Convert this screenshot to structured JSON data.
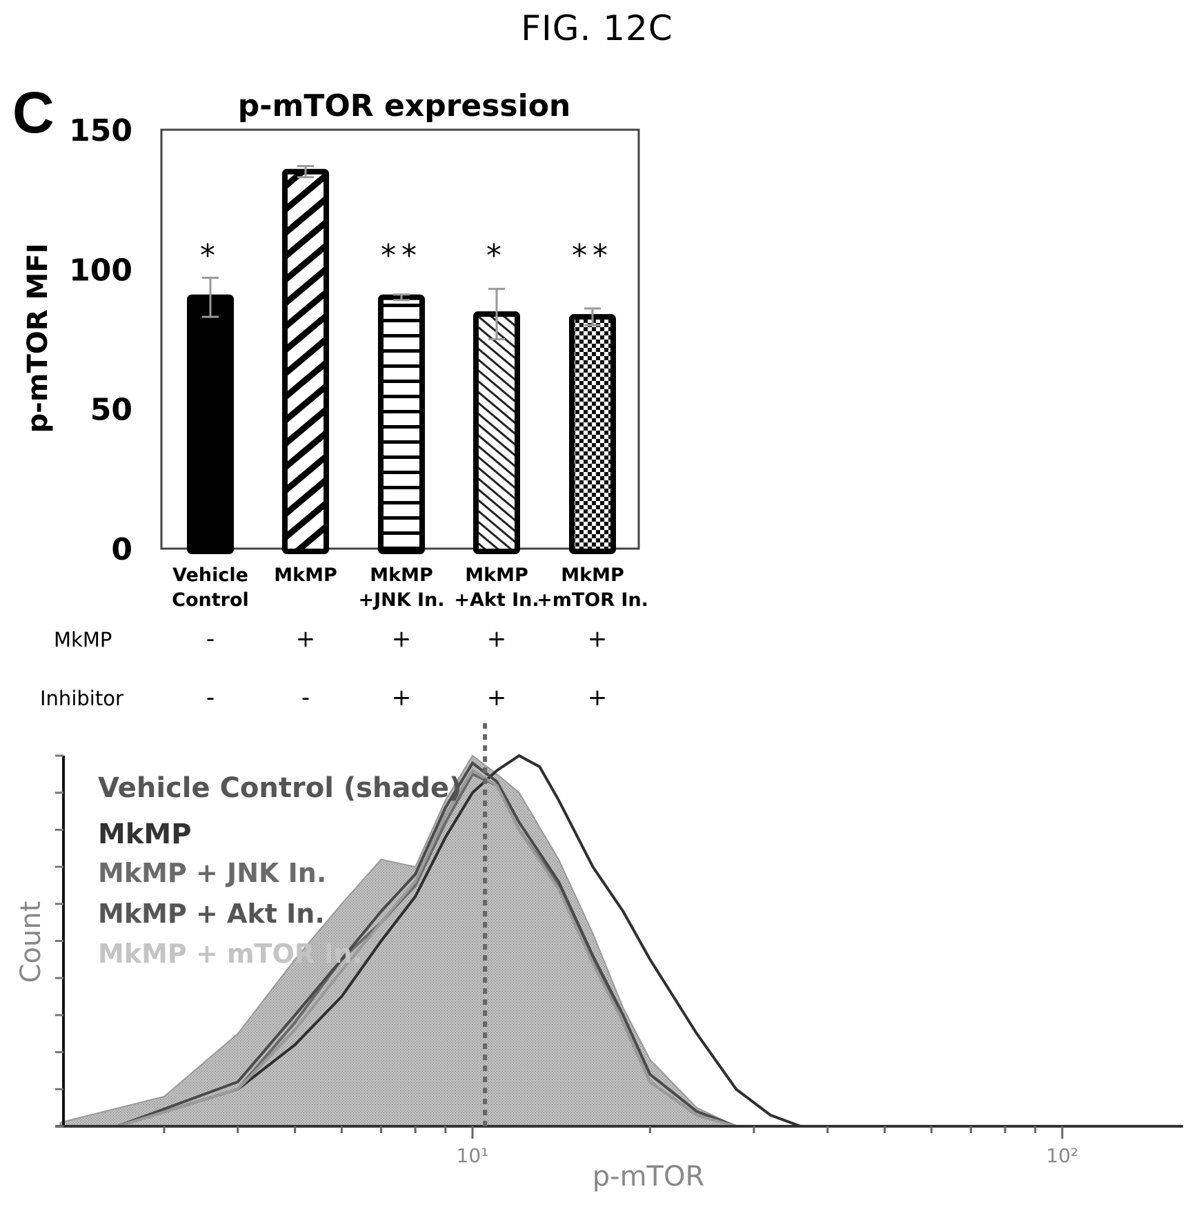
{
  "figure": {
    "title": "FIG. 12C",
    "panel_letter": "C"
  },
  "chart_data": [
    {
      "type": "bar",
      "title": "p-mTOR expression",
      "xlabel": "",
      "ylabel": "p-mTOR MFI",
      "ylim": [
        0,
        150
      ],
      "yticks": [
        0,
        50,
        100,
        150
      ],
      "ytick_labels": [
        "0",
        "50",
        "100",
        "150"
      ],
      "grid": false,
      "categories": [
        "Vehicle\nControl",
        "MkMP",
        "MkMP\n+JNK In.",
        "MkMP\n+Akt In.",
        "MkMP\n+mTOR In."
      ],
      "category_lines": [
        [
          "Vehicle",
          "Control"
        ],
        [
          "MkMP",
          ""
        ],
        [
          "MkMP",
          "+JNK In."
        ],
        [
          "MkMP",
          "+Akt In."
        ],
        [
          "MkMP",
          "+mTOR In."
        ]
      ],
      "values": [
        90,
        135,
        90,
        84,
        83
      ],
      "errors": [
        7,
        2,
        1,
        9,
        3
      ],
      "patterns": [
        "solid-black",
        "wide-diagonal-stripes",
        "horizontal-stripes",
        "fine-diagonal-stripes",
        "checker"
      ],
      "significance": [
        "*",
        "",
        "**",
        "*",
        "**"
      ]
    },
    {
      "type": "area",
      "title": "",
      "xlabel": "p-mTOR",
      "ylabel": "Count",
      "xscale": "log",
      "xlim": [
        1,
        300
      ],
      "xticks": [
        10,
        100
      ],
      "xtick_labels": [
        "10¹",
        "10²"
      ],
      "y_tick_count": 10,
      "grid": false,
      "legend_position": "top-left",
      "legend": [
        {
          "label": "Vehicle Control (shade)",
          "color": "#555555"
        },
        {
          "label": "MkMP",
          "color": "#333333"
        },
        {
          "label": "MkMP + JNK In.",
          "color": "#6a6a6a"
        },
        {
          "label": "MkMP + Akt In.",
          "color": "#555555"
        },
        {
          "label": "MkMP + mTOR In.",
          "color": "#c4c4c4"
        }
      ],
      "reference_line_x": 10.5,
      "series": [
        {
          "name": "Vehicle Control (shade)",
          "style": "filled",
          "peak_x": 10,
          "peak_rel": 1.0,
          "x": [
            2.0,
            3.0,
            4.0,
            5.0,
            6.0,
            7.0,
            8.0,
            9.0,
            10.0,
            11.0,
            12.0,
            14.0,
            16.0,
            18.0,
            20.0,
            24.0,
            28.0
          ],
          "y": [
            0.01,
            0.08,
            0.25,
            0.45,
            0.6,
            0.72,
            0.7,
            0.88,
            1.0,
            0.95,
            0.9,
            0.72,
            0.52,
            0.32,
            0.18,
            0.05,
            0.0
          ]
        },
        {
          "name": "MkMP",
          "style": "line",
          "x": [
            2.5,
            4.0,
            5.0,
            6.0,
            7.0,
            8.0,
            9.0,
            10.0,
            11.0,
            12.0,
            13.0,
            14.0,
            16.0,
            18.0,
            20.0,
            24.0,
            28.0,
            32.0,
            36.0
          ],
          "y": [
            0.0,
            0.1,
            0.22,
            0.35,
            0.5,
            0.62,
            0.78,
            0.9,
            0.96,
            1.0,
            0.97,
            0.88,
            0.7,
            0.58,
            0.45,
            0.25,
            0.1,
            0.03,
            0.0
          ]
        },
        {
          "name": "MkMP + JNK In.",
          "style": "line",
          "x": [
            2.5,
            4.0,
            5.0,
            6.0,
            7.0,
            8.0,
            9.0,
            10.0,
            11.0,
            12.0,
            14.0,
            16.0,
            18.0,
            20.0,
            24.0,
            28.0
          ],
          "y": [
            0.0,
            0.1,
            0.28,
            0.45,
            0.55,
            0.65,
            0.82,
            0.95,
            0.92,
            0.8,
            0.65,
            0.45,
            0.28,
            0.12,
            0.03,
            0.0
          ]
        },
        {
          "name": "MkMP + Akt In.",
          "style": "line",
          "x": [
            2.5,
            4.0,
            5.0,
            6.0,
            7.0,
            8.0,
            9.0,
            10.0,
            11.0,
            12.0,
            14.0,
            16.0,
            18.0,
            20.0,
            24.0,
            28.0
          ],
          "y": [
            0.0,
            0.12,
            0.3,
            0.45,
            0.58,
            0.68,
            0.86,
            0.98,
            0.93,
            0.82,
            0.66,
            0.46,
            0.3,
            0.14,
            0.04,
            0.0
          ]
        },
        {
          "name": "MkMP + mTOR In.",
          "style": "line",
          "x": [
            2.5,
            4.0,
            5.0,
            6.0,
            7.0,
            8.0,
            9.0,
            10.0,
            11.0,
            12.0,
            14.0,
            16.0,
            18.0,
            20.0,
            24.0,
            28.0
          ],
          "y": [
            0.0,
            0.1,
            0.26,
            0.42,
            0.55,
            0.66,
            0.84,
            0.96,
            0.92,
            0.8,
            0.64,
            0.44,
            0.28,
            0.12,
            0.03,
            0.0
          ]
        }
      ]
    }
  ],
  "conditions": {
    "rows": [
      {
        "label": "MkMP",
        "signs": [
          "-",
          "+",
          "+",
          "+",
          "+"
        ]
      },
      {
        "label": "Inhibitor",
        "signs": [
          "-",
          "-",
          "+",
          "+",
          "+"
        ]
      }
    ]
  }
}
